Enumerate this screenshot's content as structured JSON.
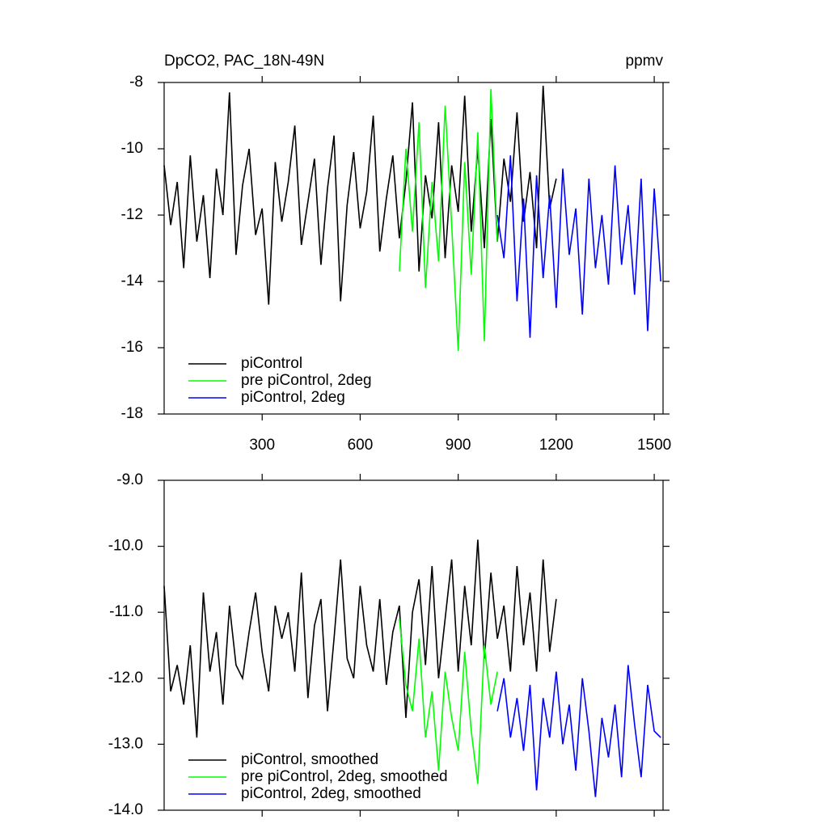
{
  "chart_data": [
    {
      "type": "line",
      "title": "DpCO2, PAC_18N-49N",
      "units": "ppmv",
      "xlim": [
        0,
        1527
      ],
      "xticks": [
        300,
        600,
        900,
        1200,
        1500
      ],
      "ylim": [
        -18,
        -8
      ],
      "yticks": [
        -8,
        -10,
        -12,
        -14,
        -16,
        -18
      ],
      "series": [
        {
          "name": "piControl",
          "color": "#000000",
          "x": [
            0,
            20,
            40,
            60,
            80,
            100,
            120,
            140,
            160,
            180,
            200,
            220,
            240,
            260,
            280,
            300,
            320,
            340,
            360,
            380,
            400,
            420,
            440,
            460,
            480,
            500,
            520,
            540,
            560,
            580,
            600,
            620,
            640,
            660,
            680,
            700,
            720,
            740,
            760,
            780,
            800,
            820,
            840,
            860,
            880,
            900,
            920,
            940,
            960,
            980,
            1000,
            1020,
            1040,
            1060,
            1080,
            1100,
            1120,
            1140,
            1160,
            1180,
            1200
          ],
          "values": [
            -10.5,
            -12.3,
            -11.0,
            -13.6,
            -10.2,
            -12.8,
            -11.4,
            -13.9,
            -10.6,
            -12.0,
            -8.3,
            -13.2,
            -11.1,
            -10.0,
            -12.6,
            -11.8,
            -14.7,
            -10.4,
            -12.2,
            -11.0,
            -9.3,
            -12.9,
            -11.6,
            -10.3,
            -13.5,
            -11.2,
            -9.6,
            -14.6,
            -11.7,
            -10.1,
            -12.4,
            -11.3,
            -9.0,
            -13.1,
            -11.5,
            -10.2,
            -12.7,
            -11.0,
            -8.6,
            -13.7,
            -10.8,
            -12.1,
            -9.2,
            -13.3,
            -10.5,
            -11.9,
            -8.4,
            -12.5,
            -10.0,
            -13.0,
            -9.1,
            -12.8,
            -10.3,
            -11.6,
            -8.9,
            -12.2,
            -10.7,
            -13.0,
            -8.1,
            -11.8,
            -10.9
          ]
        },
        {
          "name": "pre piControl, 2deg",
          "color": "#00ff00",
          "x": [
            720,
            740,
            760,
            780,
            800,
            820,
            840,
            860,
            880,
            900,
            920,
            940,
            960,
            980,
            1000,
            1020
          ],
          "values": [
            -13.7,
            -10.0,
            -12.5,
            -9.2,
            -14.2,
            -11.0,
            -13.4,
            -8.7,
            -12.3,
            -16.1,
            -10.4,
            -13.8,
            -9.5,
            -15.8,
            -8.2,
            -12.8
          ]
        },
        {
          "name": "piControl, 2deg",
          "color": "#0000ff",
          "x": [
            1020,
            1040,
            1060,
            1080,
            1100,
            1120,
            1140,
            1160,
            1180,
            1200,
            1220,
            1240,
            1260,
            1280,
            1300,
            1320,
            1340,
            1360,
            1380,
            1400,
            1420,
            1440,
            1460,
            1480,
            1500,
            1520
          ],
          "values": [
            -12.0,
            -13.3,
            -10.2,
            -14.6,
            -11.5,
            -15.7,
            -10.8,
            -13.9,
            -11.4,
            -14.8,
            -10.6,
            -13.2,
            -11.8,
            -15.0,
            -10.9,
            -13.6,
            -12.0,
            -14.1,
            -10.5,
            -13.5,
            -11.7,
            -14.4,
            -10.9,
            -15.5,
            -11.2,
            -14.0
          ]
        }
      ]
    },
    {
      "type": "line",
      "xlim": [
        0,
        1527
      ],
      "xticks": [
        300,
        600,
        900,
        1200,
        1500
      ],
      "ylim": [
        -14,
        -9
      ],
      "yticks": [
        {
          "value": -9,
          "label": "-9.0"
        },
        {
          "value": -10,
          "label": "-10.0"
        },
        {
          "value": -11,
          "label": "-11.0"
        },
        {
          "value": -12,
          "label": "-12.0"
        },
        {
          "value": -13,
          "label": "-13.0"
        },
        {
          "value": -14,
          "label": "-14.0"
        }
      ],
      "series": [
        {
          "name": "piControl, smoothed",
          "color": "#000000",
          "x": [
            0,
            20,
            40,
            60,
            80,
            100,
            120,
            140,
            160,
            180,
            200,
            220,
            240,
            260,
            280,
            300,
            320,
            340,
            360,
            380,
            400,
            420,
            440,
            460,
            480,
            500,
            520,
            540,
            560,
            580,
            600,
            620,
            640,
            660,
            680,
            700,
            720,
            740,
            760,
            780,
            800,
            820,
            840,
            860,
            880,
            900,
            920,
            940,
            960,
            980,
            1000,
            1020,
            1040,
            1060,
            1080,
            1100,
            1120,
            1140,
            1160,
            1180,
            1200
          ],
          "values": [
            -10.6,
            -12.2,
            -11.8,
            -12.4,
            -11.5,
            -12.9,
            -10.7,
            -11.9,
            -11.3,
            -12.4,
            -10.9,
            -11.8,
            -12.0,
            -11.3,
            -10.7,
            -11.6,
            -12.2,
            -10.9,
            -11.4,
            -11.0,
            -11.9,
            -10.4,
            -12.3,
            -11.2,
            -10.8,
            -12.5,
            -11.4,
            -10.2,
            -11.7,
            -12.0,
            -10.6,
            -11.5,
            -11.9,
            -10.8,
            -12.1,
            -11.3,
            -10.9,
            -12.6,
            -11.0,
            -10.5,
            -11.8,
            -10.3,
            -12.0,
            -11.1,
            -10.2,
            -11.9,
            -10.6,
            -11.5,
            -9.9,
            -11.7,
            -10.4,
            -11.4,
            -10.9,
            -11.9,
            -10.3,
            -11.5,
            -10.7,
            -11.9,
            -10.2,
            -11.6,
            -10.8
          ]
        },
        {
          "name": "pre piControl, 2deg, smoothed",
          "color": "#00ff00",
          "x": [
            720,
            740,
            760,
            780,
            800,
            820,
            840,
            860,
            880,
            900,
            920,
            940,
            960,
            980,
            1000,
            1020
          ],
          "values": [
            -11.1,
            -12.1,
            -12.5,
            -11.4,
            -12.9,
            -12.2,
            -13.4,
            -11.9,
            -12.6,
            -13.1,
            -11.6,
            -12.8,
            -13.6,
            -11.5,
            -12.4,
            -11.9
          ]
        },
        {
          "name": "piControl, 2deg, smoothed",
          "color": "#0000ff",
          "x": [
            1020,
            1040,
            1060,
            1080,
            1100,
            1120,
            1140,
            1160,
            1180,
            1200,
            1220,
            1240,
            1260,
            1280,
            1300,
            1320,
            1340,
            1360,
            1380,
            1400,
            1420,
            1440,
            1460,
            1480,
            1500,
            1520
          ],
          "values": [
            -12.5,
            -12.0,
            -12.9,
            -12.3,
            -13.1,
            -12.1,
            -13.7,
            -12.3,
            -12.9,
            -11.9,
            -13.0,
            -12.4,
            -13.4,
            -12.0,
            -12.8,
            -13.8,
            -12.6,
            -13.2,
            -12.4,
            -13.5,
            -11.8,
            -12.7,
            -13.5,
            -12.1,
            -12.8,
            -12.9
          ]
        }
      ]
    }
  ]
}
